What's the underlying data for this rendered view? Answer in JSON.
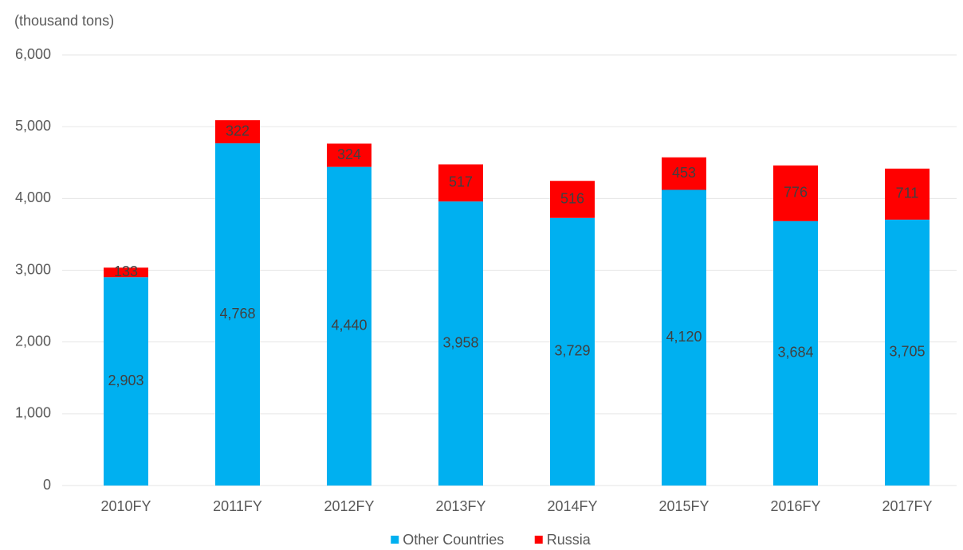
{
  "chart_data": {
    "type": "stacked_bar",
    "y_axis_label": "(thousand tons)",
    "categories": [
      "2010FY",
      "2011FY",
      "2012FY",
      "2013FY",
      "2014FY",
      "2015FY",
      "2016FY",
      "2017FY"
    ],
    "series": [
      {
        "name": "Other Countries",
        "color": "#00b0f0",
        "values": [
          2903,
          4768,
          4440,
          3958,
          3729,
          4120,
          3684,
          3705
        ],
        "value_labels": [
          "2,903",
          "4,768",
          "4,440",
          "3,958",
          "3,729",
          "4,120",
          "3,684",
          "3,705"
        ]
      },
      {
        "name": "Russia",
        "color": "#ff0000",
        "values": [
          133,
          322,
          324,
          517,
          516,
          453,
          776,
          711
        ]
      }
    ],
    "ylim": [
      0,
      6000
    ],
    "yticks": [
      0,
      {
        "value": 1000,
        "label": "1,000"
      },
      {
        "value": 2000,
        "label": "2,000"
      },
      {
        "value": 3000,
        "label": "3,000"
      },
      {
        "value": 4000,
        "label": "4,000"
      },
      {
        "value": 5000,
        "label": "5,000"
      },
      {
        "value": 6000,
        "label": "6,000"
      }
    ],
    "grid": true,
    "legend": "bottom"
  }
}
